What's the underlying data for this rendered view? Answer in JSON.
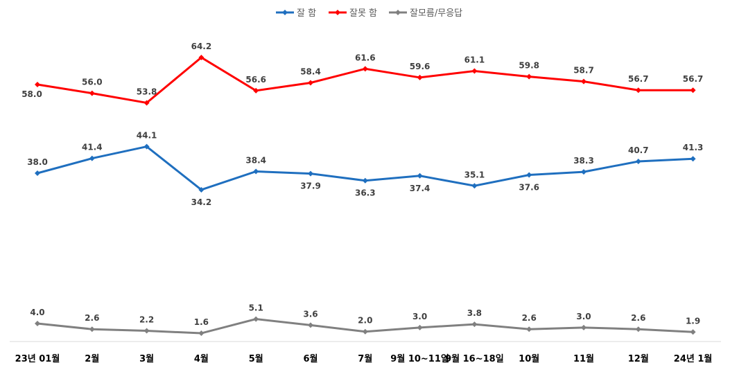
{
  "chart_data": {
    "type": "line",
    "categories": [
      "23년 01월",
      "2월",
      "3월",
      "4월",
      "5월",
      "6월",
      "7월",
      "9월 10~11일",
      "9월 16~18일",
      "10월",
      "11월",
      "12월",
      "24년 1월"
    ],
    "series": [
      {
        "name": "잘 함",
        "color": "#1F6FBF",
        "values": [
          38.0,
          41.4,
          44.1,
          34.2,
          38.4,
          37.9,
          36.3,
          37.4,
          35.1,
          37.6,
          38.3,
          40.7,
          41.3
        ]
      },
      {
        "name": "잘못 함",
        "color": "#FF0000",
        "values": [
          58.0,
          56.0,
          53.8,
          64.2,
          56.6,
          58.4,
          61.6,
          59.6,
          61.1,
          59.8,
          58.7,
          56.7,
          56.7
        ]
      },
      {
        "name": "잘모름/무응답",
        "color": "#808080",
        "values": [
          4.0,
          2.6,
          2.2,
          1.6,
          5.1,
          3.6,
          2.0,
          3.0,
          3.8,
          2.6,
          3.0,
          2.6,
          1.9
        ]
      }
    ],
    "legend_position": "top-center",
    "grid": false,
    "title": "",
    "xlabel": "",
    "ylabel": ""
  }
}
